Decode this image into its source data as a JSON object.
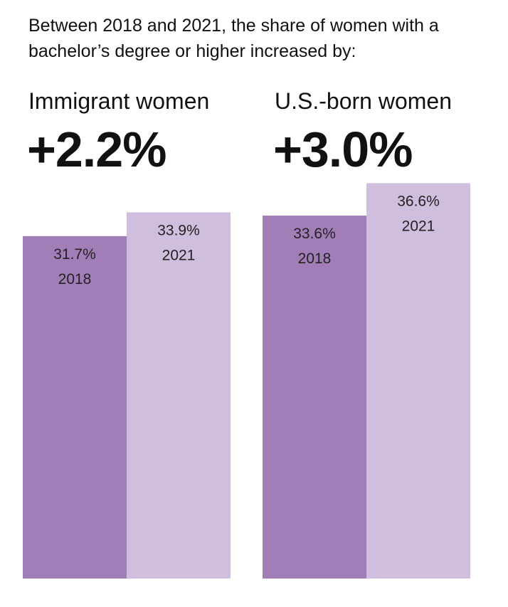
{
  "intro_text": "Between 2018 and 2021, the share of women with a bachelor’s degree or higher increased by:",
  "chart_data": {
    "type": "bar",
    "groups": [
      {
        "name": "Immigrant women",
        "change_label": "+2.2%",
        "bars": [
          {
            "year": "2018",
            "value": 31.7,
            "value_label": "31.7%"
          },
          {
            "year": "2021",
            "value": 33.9,
            "value_label": "33.9%"
          }
        ]
      },
      {
        "name": "U.S.-born women",
        "change_label": "+3.0%",
        "bars": [
          {
            "year": "2018",
            "value": 33.6,
            "value_label": "33.6%"
          },
          {
            "year": "2021",
            "value": 36.6,
            "value_label": "36.6%"
          }
        ]
      }
    ],
    "colors": {
      "2018": "#a27eb8",
      "2021": "#cfbedd"
    },
    "grid": false,
    "legend": "none"
  }
}
